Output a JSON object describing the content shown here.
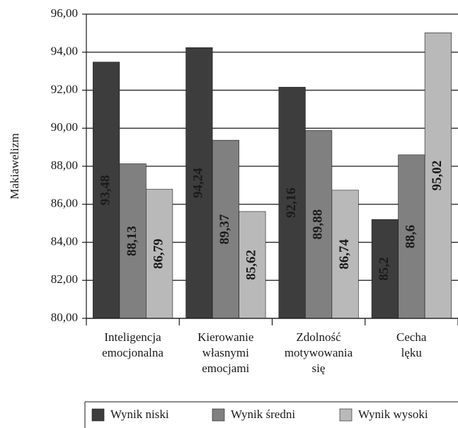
{
  "chart_data": {
    "type": "bar",
    "y_label": "Makiawelizm",
    "categories": [
      "Inteligencja\nemocjonalna",
      "Kierowanie\nwłasnymi\nemocjami",
      "Zdolność\nmotywowania\nsię",
      "Cecha\nlęku"
    ],
    "series": [
      {
        "name": "Wynik niski",
        "color": "#3d3d3d",
        "label_color": "#ffffff",
        "values": [
          93.48,
          94.24,
          92.16,
          85.2
        ],
        "value_labels": [
          "93,48",
          "94,24",
          "92,16",
          "85,2"
        ]
      },
      {
        "name": "Wynik średni",
        "color": "#808080",
        "label_color": "#1a1a1a",
        "values": [
          88.13,
          89.37,
          89.88,
          88.6
        ],
        "value_labels": [
          "88,13",
          "89,37",
          "89,88",
          "88,6"
        ]
      },
      {
        "name": "Wynik wysoki",
        "color": "#b9b9b9",
        "label_color": "#1a1a1a",
        "values": [
          86.79,
          85.62,
          86.74,
          95.02
        ],
        "value_labels": [
          "86,79",
          "85,62",
          "86,74",
          "95,02"
        ]
      }
    ],
    "ylim": [
      80,
      96
    ],
    "yticks": [
      {
        "value": 80,
        "label": "80,00"
      },
      {
        "value": 82,
        "label": "82,00"
      },
      {
        "value": 84,
        "label": "84,00"
      },
      {
        "value": 86,
        "label": "86,00"
      },
      {
        "value": 88,
        "label": "88,00"
      },
      {
        "value": 90,
        "label": "90,00"
      },
      {
        "value": 92,
        "label": "92,00"
      },
      {
        "value": 94,
        "label": "94,00"
      },
      {
        "value": 96,
        "label": "96,00"
      }
    ],
    "grid": true
  }
}
